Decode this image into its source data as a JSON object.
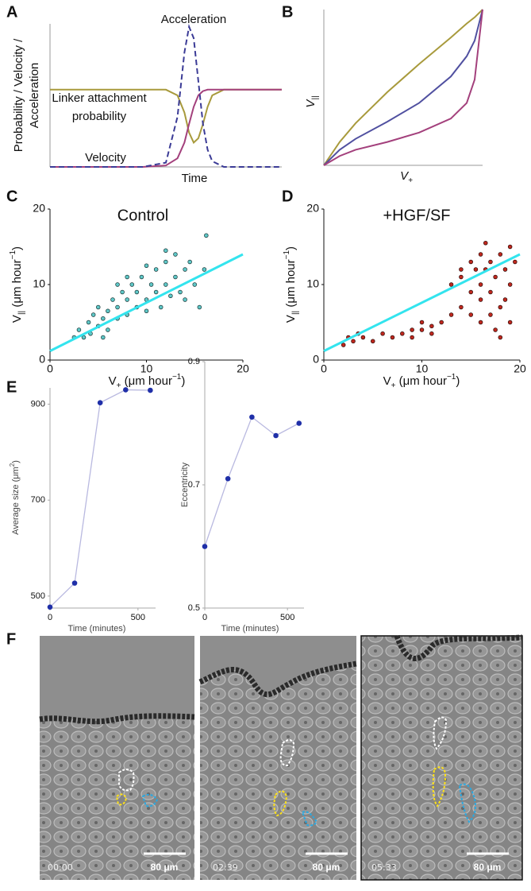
{
  "panel_labels": [
    "A",
    "B",
    "C",
    "D",
    "E",
    "F"
  ],
  "chart_data": [
    {
      "type": "line",
      "y_label": [
        "Probability / Velocity /",
        "Acceleration"
      ],
      "x_label": "Time",
      "annotations": [
        "Acceleration",
        "Linker attachment",
        "probability",
        "Velocity"
      ],
      "xlim": [
        0,
        10
      ],
      "ylim": [
        0,
        1
      ],
      "x": [
        0,
        2,
        4,
        5,
        5.5,
        5.8,
        6,
        6.2,
        6.4,
        6.6,
        6.8,
        7,
        7.5,
        8,
        9,
        10
      ],
      "series": [
        {
          "color": "#a89a3c",
          "values": [
            0.54,
            0.54,
            0.54,
            0.54,
            0.5,
            0.38,
            0.24,
            0.17,
            0.2,
            0.3,
            0.42,
            0.5,
            0.54,
            0.54,
            0.54,
            0.54
          ]
        },
        {
          "color": "#a3407c",
          "values": [
            0,
            0,
            0,
            0.01,
            0.06,
            0.17,
            0.3,
            0.42,
            0.5,
            0.53,
            0.54,
            0.54,
            0.54,
            0.54,
            0.54,
            0.54
          ]
        },
        {
          "color": "#3b3b96",
          "dash": true,
          "values": [
            0,
            0,
            0,
            0.03,
            0.35,
            0.8,
            0.98,
            0.9,
            0.6,
            0.3,
            0.12,
            0.04,
            0,
            0,
            0,
            0
          ]
        }
      ]
    },
    {
      "type": "line",
      "y_label": [
        "V",
        "||"
      ],
      "x_label": [
        "V",
        "+"
      ],
      "xlim": [
        0,
        1
      ],
      "ylim": [
        0,
        1
      ],
      "x": [
        0,
        0.1,
        0.2,
        0.4,
        0.6,
        0.8,
        0.9,
        0.95,
        1
      ],
      "series": [
        {
          "color": "#a89a3c",
          "values": [
            0,
            0.15,
            0.27,
            0.47,
            0.65,
            0.82,
            0.91,
            0.95,
            1
          ]
        },
        {
          "color": "#5050a0",
          "values": [
            0,
            0.1,
            0.17,
            0.28,
            0.4,
            0.57,
            0.7,
            0.8,
            1
          ]
        },
        {
          "color": "#a3407c",
          "values": [
            0,
            0.06,
            0.1,
            0.15,
            0.21,
            0.3,
            0.4,
            0.55,
            1
          ]
        }
      ]
    },
    {
      "type": "scatter",
      "title": "Control",
      "y_label": [
        "V",
        "||",
        " (μm hour",
        "−1",
        ")"
      ],
      "x_label": [
        "V",
        "+",
        " (μm hour",
        "−1",
        ")"
      ],
      "xlim": [
        0,
        20
      ],
      "ylim": [
        0,
        20
      ],
      "xticks": [
        0,
        10,
        20
      ],
      "yticks": [
        0,
        10,
        20
      ],
      "series": [
        {
          "color": "#5fc8c8",
          "edge_color": "#163232",
          "x": [
            3,
            3.5,
            4,
            4.2,
            4.5,
            5,
            5,
            5.5,
            6,
            6,
            6.5,
            7,
            7,
            7.5,
            8,
            8,
            8.5,
            9,
            9,
            9.5,
            10,
            10,
            10.5,
            11,
            11,
            11.5,
            12,
            12,
            12.5,
            13,
            13,
            13.5,
            14,
            14,
            14.5,
            15,
            15.5,
            16,
            16.2,
            12,
            5.5,
            8,
            2.5,
            7,
            10
          ],
          "values": [
            4,
            3,
            5,
            3.5,
            6,
            4.5,
            7,
            5.5,
            4,
            6.5,
            8,
            5.5,
            7,
            9,
            6,
            8,
            10,
            7,
            9,
            11,
            8,
            6.5,
            10,
            9,
            12,
            7,
            10,
            13,
            8.5,
            11,
            14,
            9,
            12,
            8,
            13,
            10,
            7,
            12,
            16.5,
            14.5,
            3,
            11,
            3,
            10,
            12.5
          ]
        }
      ],
      "fit": {
        "color": "#33e4ee",
        "x": [
          0,
          20
        ],
        "values": [
          1.2,
          14
        ]
      }
    },
    {
      "type": "scatter",
      "title": "+HGF/SF",
      "y_label": [
        "V",
        "||",
        " (μm hour",
        "−1",
        ")"
      ],
      "x_label": [
        "V",
        "+",
        " (μm hour",
        "−1",
        ")"
      ],
      "xlim": [
        0,
        20
      ],
      "ylim": [
        0,
        20
      ],
      "xticks": [
        0,
        10,
        20
      ],
      "yticks": [
        0,
        10,
        20
      ],
      "series": [
        {
          "color": "#c0281e",
          "edge_color": "#2a0806",
          "x": [
            2,
            2.5,
            3,
            4,
            5,
            6,
            7,
            8,
            9,
            10,
            11,
            12,
            13,
            14,
            14,
            15,
            15,
            15.5,
            16,
            16,
            16,
            16.5,
            17,
            17,
            17,
            17.5,
            17.5,
            18,
            18,
            18.5,
            18.5,
            19,
            19,
            19,
            19.5,
            13,
            14,
            16.5,
            18,
            15,
            3.5,
            9,
            11,
            10,
            16
          ],
          "values": [
            2,
            3,
            2.5,
            3,
            2.5,
            3.5,
            3,
            3.5,
            4,
            4,
            4.5,
            5,
            6,
            7,
            11,
            9,
            13,
            12,
            5,
            10,
            14,
            12,
            6,
            9,
            13,
            4,
            11,
            7,
            14,
            8,
            12,
            5,
            10,
            15,
            13,
            10,
            12,
            15.5,
            3,
            6,
            3.5,
            3,
            3.5,
            5,
            8
          ]
        }
      ],
      "fit": {
        "color": "#33e4ee",
        "x": [
          0,
          20
        ],
        "values": [
          1.2,
          14
        ]
      }
    },
    {
      "type": "line",
      "markers": true,
      "y_label": [
        "Average size (μm",
        "2",
        ")"
      ],
      "x_label": "Time (minutes)",
      "xlim": [
        0,
        600
      ],
      "ylim": [
        475,
        934
      ],
      "xticks": [
        0,
        500
      ],
      "yticks": [
        500,
        700,
        900
      ],
      "x": [
        0,
        140,
        285,
        430,
        570
      ],
      "series": [
        {
          "color": "#b9b9e0",
          "marker_color": "#1f2fa8",
          "values": [
            477,
            527,
            903,
            930,
            929
          ]
        }
      ]
    },
    {
      "type": "line",
      "markers": true,
      "y_label": "Eccentricity",
      "x_label": "Time (minutes)",
      "xlim": [
        0,
        600
      ],
      "ylim": [
        0.5,
        0.9
      ],
      "xticks": [
        0,
        500
      ],
      "yticks": [
        0.5,
        0.7,
        0.9
      ],
      "x": [
        0,
        140,
        285,
        430,
        570
      ],
      "series": [
        {
          "color": "#b9b9e0",
          "marker_color": "#1f2fa8",
          "values": [
            0.6,
            0.71,
            0.81,
            0.78,
            0.8
          ]
        }
      ]
    }
  ],
  "micrographs": [
    {
      "timestamp": "00:00",
      "scale_bar": "80 μm"
    },
    {
      "timestamp": "02:39",
      "scale_bar": "80 μm"
    },
    {
      "timestamp": "05:33",
      "scale_bar": "80 μm"
    }
  ]
}
